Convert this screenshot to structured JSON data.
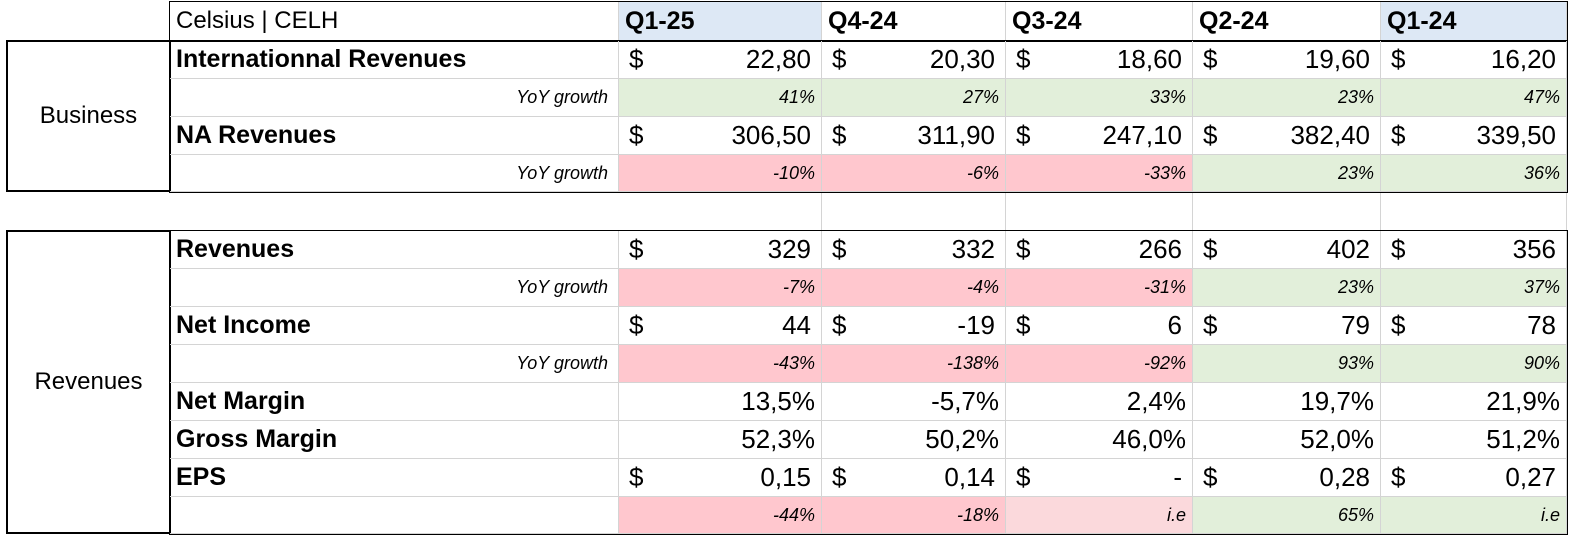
{
  "header": {
    "title": "Celsius | CELH",
    "quarters": [
      "Q1-25",
      "Q4-24",
      "Q3-24",
      "Q2-24",
      "Q1-24"
    ]
  },
  "sections": {
    "business": "Business",
    "revenues": "Revenues"
  },
  "business": {
    "intl_label": "Internationnal Revenues",
    "intl": [
      "22,80",
      "20,30",
      "18,60",
      "19,60",
      "16,20"
    ],
    "intl_sub": "YoY growth",
    "intl_growth": [
      "41%",
      "27%",
      "33%",
      "23%",
      "47%"
    ],
    "na_label": "NA Revenues",
    "na": [
      "306,50",
      "311,90",
      "247,10",
      "382,40",
      "339,50"
    ],
    "na_sub": "YoY growth",
    "na_growth": [
      "-10%",
      "-6%",
      "-33%",
      "23%",
      "36%"
    ]
  },
  "revenues": {
    "rev_label": "Revenues",
    "rev": [
      "329",
      "332",
      "266",
      "402",
      "356"
    ],
    "rev_sub": "YoY growth",
    "rev_growth": [
      "-7%",
      "-4%",
      "-31%",
      "23%",
      "37%"
    ],
    "ni_label": "Net Income",
    "ni": [
      "44",
      "-19",
      "6",
      "79",
      "78"
    ],
    "ni_sub": "YoY growth",
    "ni_growth": [
      "-43%",
      "-138%",
      "-92%",
      "93%",
      "90%"
    ],
    "nm_label": "Net Margin",
    "nm": [
      "13,5%",
      "-5,7%",
      "2,4%",
      "19,7%",
      "21,9%"
    ],
    "gm_label": "Gross Margin",
    "gm": [
      "52,3%",
      "50,2%",
      "46,0%",
      "52,0%",
      "51,2%"
    ],
    "eps_label": "EPS",
    "eps": [
      "0,15",
      "0,14",
      "-",
      "0,28",
      "0,27"
    ],
    "eps_growth": [
      "-44%",
      "-18%",
      "i.e",
      "65%",
      "i.e"
    ]
  },
  "currency": "$",
  "colors": {
    "header_blue": "#dde8f5",
    "positive_green": "#e2efda",
    "negative_red": "#ffc7ce",
    "light_red": "#fbd9dc"
  }
}
